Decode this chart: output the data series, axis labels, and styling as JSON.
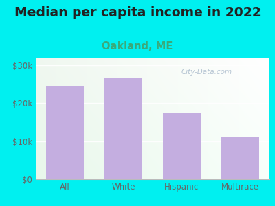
{
  "title": "Median per capita income in 2022",
  "subtitle": "Oakland, ME",
  "categories": [
    "All",
    "White",
    "Hispanic",
    "Multirace"
  ],
  "values": [
    24500,
    26800,
    17500,
    11200
  ],
  "bar_color": "#c4aee0",
  "title_fontsize": 13.5,
  "subtitle_fontsize": 10.5,
  "subtitle_color": "#3aaa7a",
  "title_color": "#222222",
  "background_outer": "#00f0f0",
  "ylim": [
    0,
    32000
  ],
  "yticks": [
    0,
    10000,
    20000,
    30000
  ],
  "ytick_labels": [
    "$0",
    "$10k",
    "$20k",
    "$30k"
  ],
  "watermark": "City-Data.com",
  "grid_color": "#e0e8e0",
  "tick_color": "#666666"
}
